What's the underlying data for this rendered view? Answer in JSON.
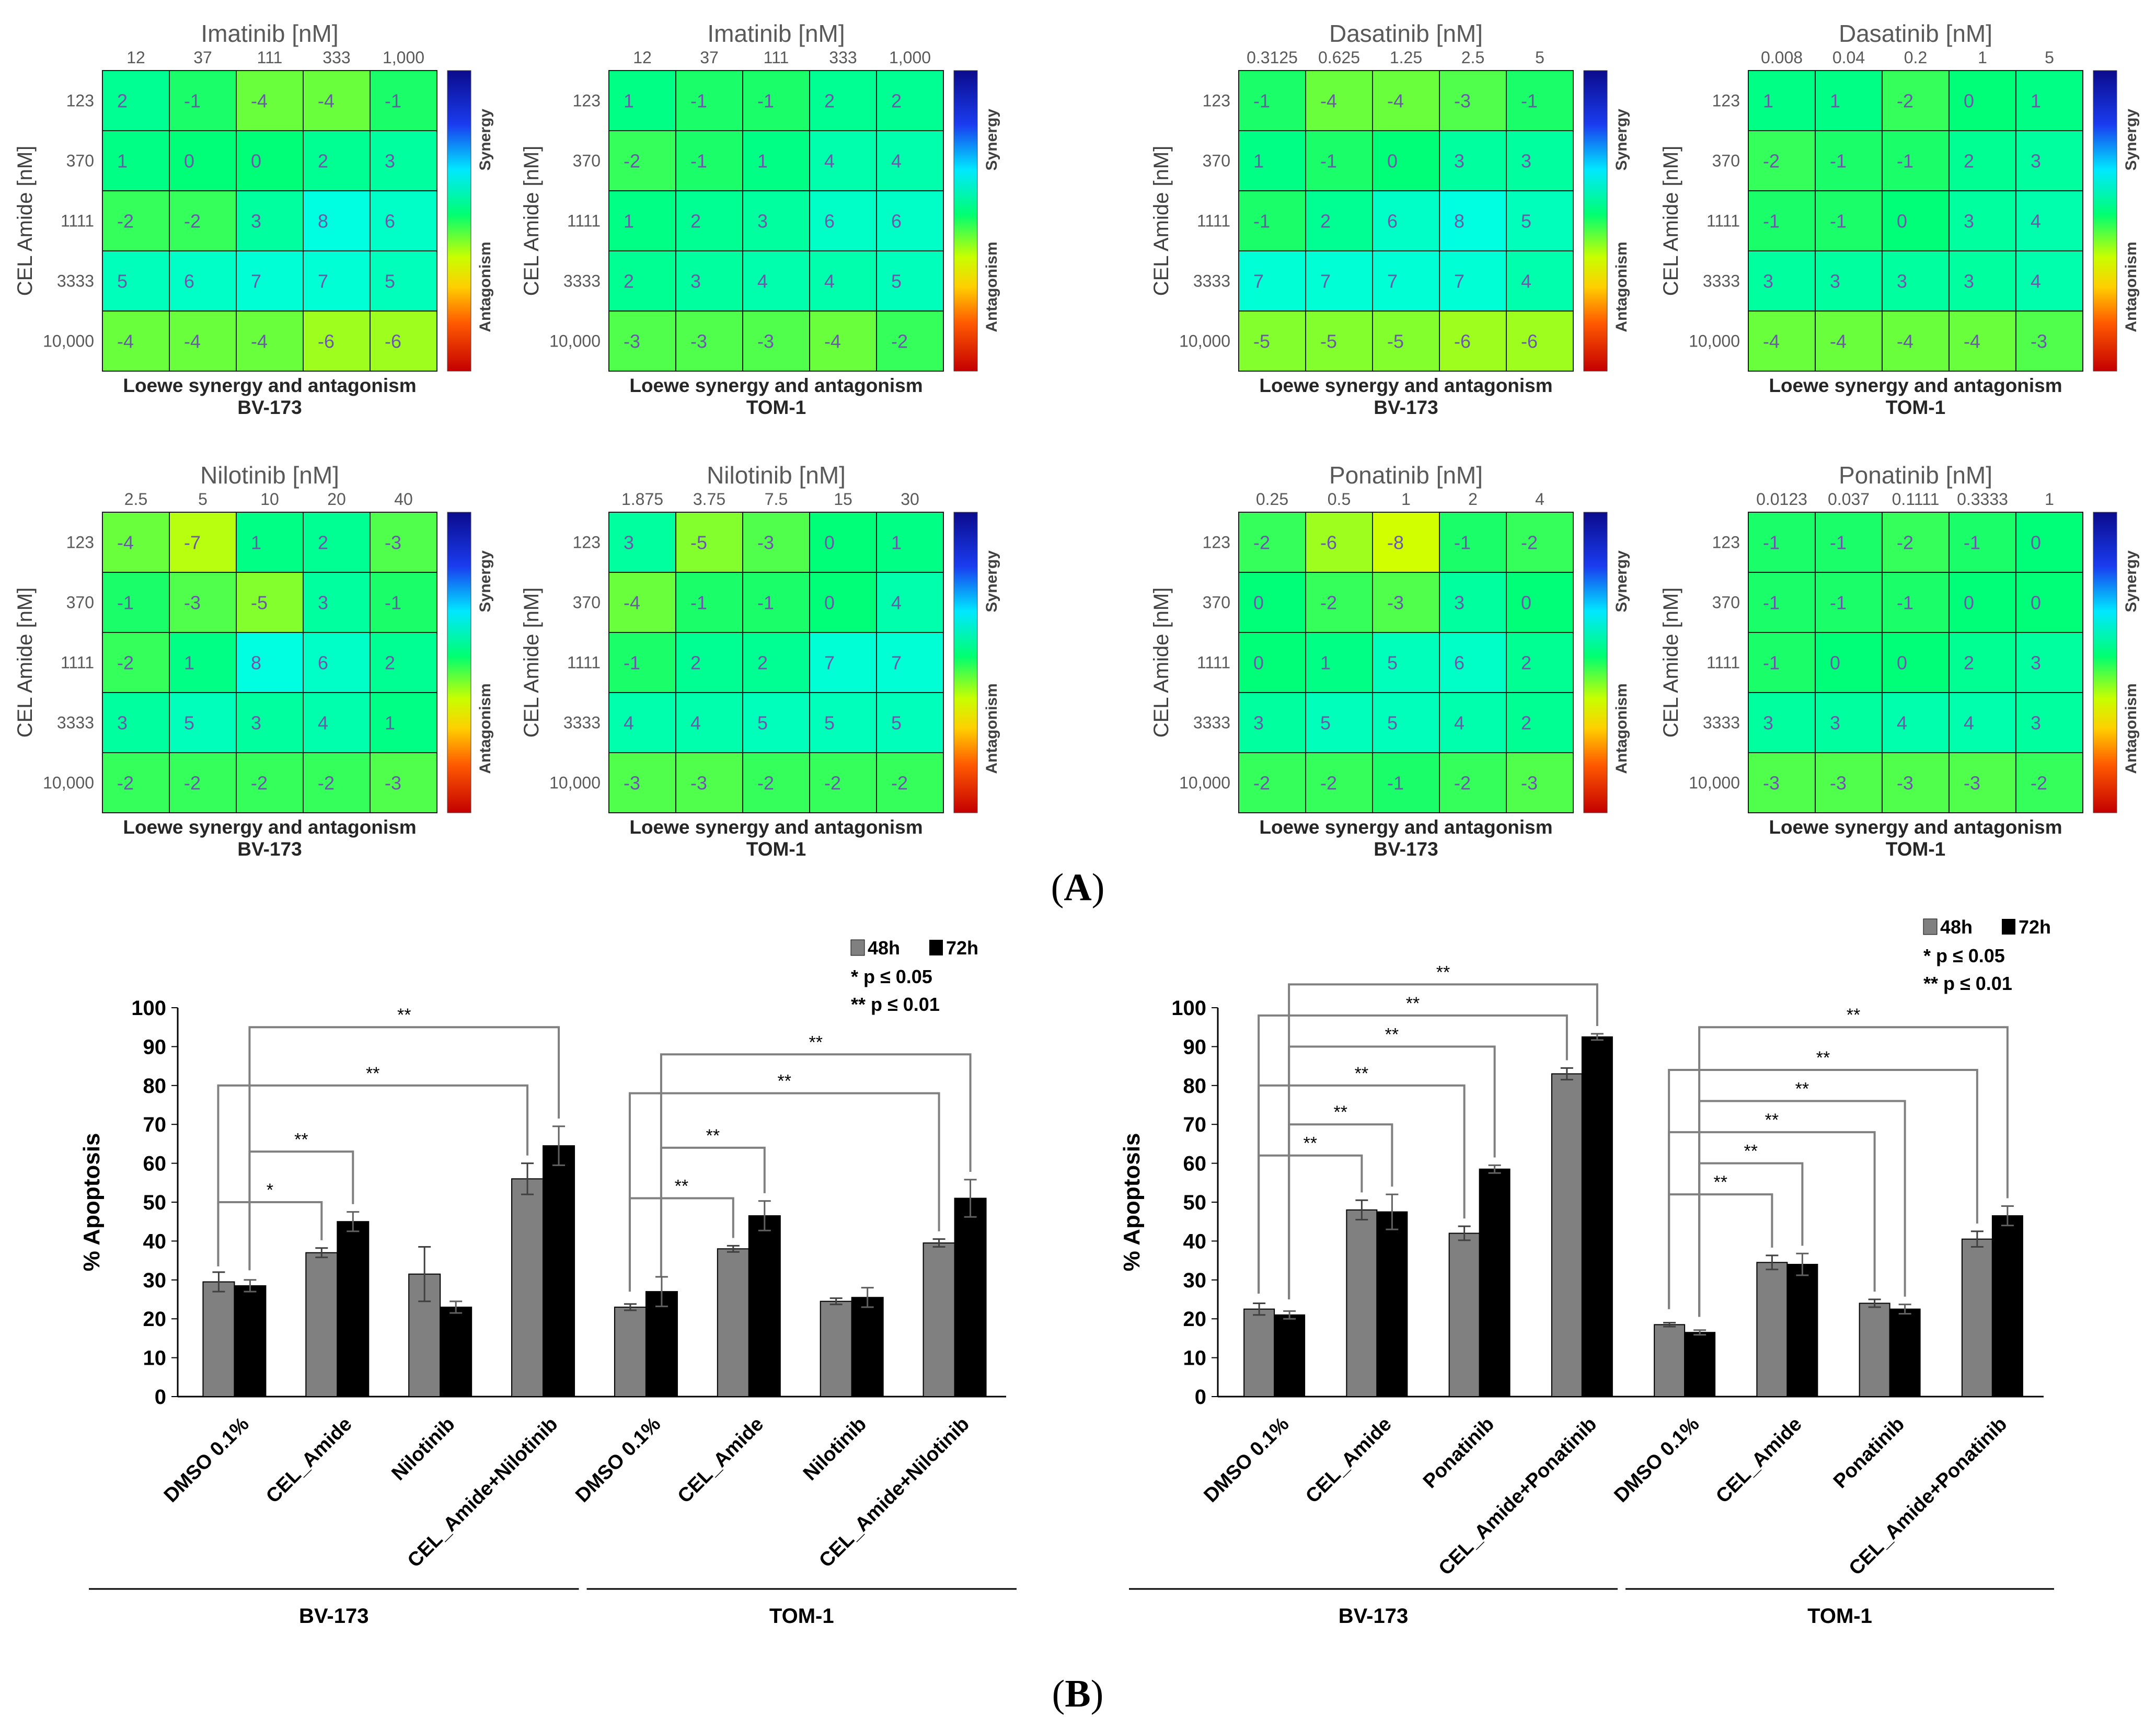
{
  "panel_labels": {
    "A": "A",
    "B": "B"
  },
  "colorbar": {
    "top_label": "Synergy",
    "bottom_label": "Antagonism",
    "range": [
      -30,
      30
    ]
  },
  "chart_data": [
    {
      "type": "heatmap",
      "title": "Imatinib [nM]",
      "x_ticks": [
        "12",
        "37",
        "111",
        "333",
        "1,000"
      ],
      "ylabel": "CEL Amide [nM]",
      "y_ticks": [
        "123",
        "370",
        "1111",
        "3333",
        "10,000"
      ],
      "subtitle": "Loewe synergy and antagonism",
      "cell_line": "BV-173",
      "values": [
        [
          2,
          -1,
          -4,
          -4,
          -1
        ],
        [
          1,
          0,
          0,
          2,
          3
        ],
        [
          -2,
          -2,
          3,
          8,
          6
        ],
        [
          5,
          6,
          7,
          7,
          5
        ],
        [
          -4,
          -4,
          -4,
          -6,
          -6
        ]
      ]
    },
    {
      "type": "heatmap",
      "title": "Imatinib [nM]",
      "x_ticks": [
        "12",
        "37",
        "111",
        "333",
        "1,000"
      ],
      "ylabel": "CEL Amide [nM]",
      "y_ticks": [
        "123",
        "370",
        "1111",
        "3333",
        "10,000"
      ],
      "subtitle": "Loewe synergy and antagonism",
      "cell_line": "TOM-1",
      "values": [
        [
          1,
          -1,
          -1,
          2,
          2
        ],
        [
          -2,
          -1,
          1,
          4,
          4
        ],
        [
          1,
          2,
          3,
          6,
          6
        ],
        [
          2,
          3,
          4,
          4,
          5
        ],
        [
          -3,
          -3,
          -3,
          -4,
          -2
        ]
      ]
    },
    {
      "type": "heatmap",
      "title": "Dasatinib [nM]",
      "x_ticks": [
        "0.3125",
        "0.625",
        "1.25",
        "2.5",
        "5"
      ],
      "ylabel": "CEL Amide [nM]",
      "y_ticks": [
        "123",
        "370",
        "1111",
        "3333",
        "10,000"
      ],
      "subtitle": "Loewe synergy and antagonism",
      "cell_line": "BV-173",
      "values": [
        [
          -1,
          -4,
          -4,
          -3,
          -1
        ],
        [
          1,
          -1,
          0,
          3,
          3
        ],
        [
          -1,
          2,
          6,
          8,
          5
        ],
        [
          7,
          7,
          7,
          7,
          4
        ],
        [
          -5,
          -5,
          -5,
          -6,
          -6
        ]
      ]
    },
    {
      "type": "heatmap",
      "title": "Dasatinib [nM]",
      "x_ticks": [
        "0.008",
        "0.04",
        "0.2",
        "1",
        "5"
      ],
      "ylabel": "CEL Amide [nM]",
      "y_ticks": [
        "123",
        "370",
        "1111",
        "3333",
        "10,000"
      ],
      "subtitle": "Loewe synergy and antagonism",
      "cell_line": "TOM-1",
      "values": [
        [
          1,
          1,
          -2,
          0,
          1
        ],
        [
          -2,
          -1,
          -1,
          2,
          3
        ],
        [
          -1,
          -1,
          0,
          3,
          4
        ],
        [
          3,
          3,
          3,
          3,
          4
        ],
        [
          -4,
          -4,
          -4,
          -4,
          -3
        ]
      ]
    },
    {
      "type": "heatmap",
      "title": "Nilotinib [nM]",
      "x_ticks": [
        "2.5",
        "5",
        "10",
        "20",
        "40"
      ],
      "ylabel": "CEL Amide [nM]",
      "y_ticks": [
        "123",
        "370",
        "1111",
        "3333",
        "10,000"
      ],
      "subtitle": "Loewe synergy and antagonism",
      "cell_line": "BV-173",
      "values": [
        [
          -4,
          -7,
          1,
          2,
          -3
        ],
        [
          -1,
          -3,
          -5,
          3,
          -1
        ],
        [
          -2,
          1,
          8,
          6,
          2
        ],
        [
          3,
          5,
          3,
          4,
          1
        ],
        [
          -2,
          -2,
          -2,
          -2,
          -3
        ]
      ]
    },
    {
      "type": "heatmap",
      "title": "Nilotinib [nM]",
      "x_ticks": [
        "1.875",
        "3.75",
        "7.5",
        "15",
        "30"
      ],
      "ylabel": "CEL Amide [nM]",
      "y_ticks": [
        "123",
        "370",
        "1111",
        "3333",
        "10,000"
      ],
      "subtitle": "Loewe synergy and antagonism",
      "cell_line": "TOM-1",
      "values": [
        [
          3,
          -5,
          -3,
          0,
          1
        ],
        [
          -4,
          -1,
          -1,
          0,
          4
        ],
        [
          -1,
          2,
          2,
          7,
          7
        ],
        [
          4,
          4,
          5,
          5,
          5
        ],
        [
          -3,
          -3,
          -2,
          -2,
          -2
        ]
      ]
    },
    {
      "type": "heatmap",
      "title": "Ponatinib [nM]",
      "x_ticks": [
        "0.25",
        "0.5",
        "1",
        "2",
        "4"
      ],
      "ylabel": "CEL Amide [nM]",
      "y_ticks": [
        "123",
        "370",
        "1111",
        "3333",
        "10,000"
      ],
      "subtitle": "Loewe synergy and antagonism",
      "cell_line": "BV-173",
      "values": [
        [
          -2,
          -6,
          -8,
          -1,
          -2
        ],
        [
          0,
          -2,
          -3,
          3,
          0
        ],
        [
          0,
          1,
          5,
          6,
          2
        ],
        [
          3,
          5,
          5,
          4,
          2
        ],
        [
          -2,
          -2,
          -1,
          -2,
          -3
        ]
      ]
    },
    {
      "type": "heatmap",
      "title": "Ponatinib [nM]",
      "x_ticks": [
        "0.0123",
        "0.037",
        "0.1111",
        "0.3333",
        "1"
      ],
      "ylabel": "CEL Amide [nM]",
      "y_ticks": [
        "123",
        "370",
        "1111",
        "3333",
        "10,000"
      ],
      "subtitle": "Loewe synergy and antagonism",
      "cell_line": "TOM-1",
      "values": [
        [
          -1,
          -1,
          -2,
          -1,
          0
        ],
        [
          -1,
          -1,
          -1,
          0,
          0
        ],
        [
          -1,
          0,
          0,
          2,
          3
        ],
        [
          3,
          3,
          4,
          4,
          3
        ],
        [
          -3,
          -3,
          -3,
          -3,
          -2
        ]
      ]
    },
    {
      "type": "bar",
      "ylabel": "% Apoptosis",
      "ylim": [
        0,
        100
      ],
      "yticks": [
        "0",
        "10",
        "20",
        "30",
        "40",
        "50",
        "60",
        "70",
        "80",
        "90",
        "100"
      ],
      "categories": [
        "DMSO 0.1%",
        "CEL_Amide",
        "Nilotinib",
        "CEL_Amide+Nilotinib",
        "DMSO 0.1%",
        "CEL_Amide",
        "Nilotinib",
        "CEL_Amide+Nilotinib"
      ],
      "groups": [
        "BV-173",
        "TOM-1"
      ],
      "series": [
        {
          "name": "48h",
          "values": [
            29.5,
            37,
            31.5,
            56,
            23,
            38,
            24.5,
            39.5
          ],
          "errors": [
            2.5,
            1.2,
            7,
            4,
            0.8,
            0.8,
            0.8,
            1
          ]
        },
        {
          "name": "72h",
          "values": [
            28.5,
            45,
            23,
            64.5,
            27,
            46.5,
            25.5,
            51
          ],
          "errors": [
            1.5,
            2.5,
            1.5,
            5,
            3.8,
            3.8,
            2.5,
            4.8
          ]
        }
      ],
      "legend": {
        "s48": "48h",
        "s72": "72h",
        "p1": "*  p ≤ 0.05",
        "p2": "** p ≤ 0.01"
      },
      "brackets": [
        {
          "from": 0,
          "to": 1,
          "level": 50,
          "label": "*"
        },
        {
          "from": 0,
          "to": 1,
          "level": 63,
          "label": "**"
        },
        {
          "from": 0,
          "to": 3,
          "level": 80,
          "label": "**"
        },
        {
          "from": 0,
          "to": 3,
          "level": 95,
          "label": "**"
        },
        {
          "from": 4,
          "to": 5,
          "level": 51,
          "label": "**"
        },
        {
          "from": 4,
          "to": 5,
          "level": 64,
          "label": "**"
        },
        {
          "from": 4,
          "to": 7,
          "level": 78,
          "label": "**"
        },
        {
          "from": 4,
          "to": 7,
          "level": 88,
          "label": "**"
        }
      ]
    },
    {
      "type": "bar",
      "ylabel": "% Apoptosis",
      "ylim": [
        0,
        100
      ],
      "yticks": [
        "0",
        "10",
        "20",
        "30",
        "40",
        "50",
        "60",
        "70",
        "80",
        "90",
        "100"
      ],
      "categories": [
        "DMSO 0.1%",
        "CEL_Amide",
        "Ponatinib",
        "CEL_Amide+Ponatinib",
        "DMSO 0.1%",
        "CEL_Amide",
        "Ponatinib",
        "CEL_Amide+Ponatinib"
      ],
      "groups": [
        "BV-173",
        "TOM-1"
      ],
      "series": [
        {
          "name": "48h",
          "values": [
            22.5,
            48,
            42,
            83,
            18.5,
            34.5,
            24,
            40.5
          ],
          "errors": [
            1.5,
            2.5,
            1.8,
            1.5,
            0.5,
            1.8,
            1,
            2
          ]
        },
        {
          "name": "72h",
          "values": [
            21,
            47.5,
            58.5,
            92.5,
            16.5,
            34,
            22.5,
            46.5
          ],
          "errors": [
            1,
            4.5,
            1,
            0.8,
            0.6,
            2.8,
            1.2,
            2.5
          ]
        }
      ],
      "legend": {
        "s48": "48h",
        "s72": "72h",
        "p1": "*  p ≤ 0.05",
        "p2": "** p ≤ 0.01"
      },
      "brackets": [
        {
          "from": 0,
          "to": 1,
          "level": 62,
          "label": "**"
        },
        {
          "from": 0,
          "to": 1,
          "level": 70,
          "label": "**"
        },
        {
          "from": 0,
          "to": 2,
          "level": 80,
          "label": "**"
        },
        {
          "from": 0,
          "to": 2,
          "level": 90,
          "label": "**"
        },
        {
          "from": 0,
          "to": 3,
          "level": 98,
          "label": "**"
        },
        {
          "from": 0,
          "to": 3,
          "level": 106,
          "label": "**"
        },
        {
          "from": 4,
          "to": 5,
          "level": 52,
          "label": "**"
        },
        {
          "from": 4,
          "to": 5,
          "level": 60,
          "label": "**"
        },
        {
          "from": 4,
          "to": 6,
          "level": 68,
          "label": "**"
        },
        {
          "from": 4,
          "to": 6,
          "level": 76,
          "label": "**"
        },
        {
          "from": 4,
          "to": 7,
          "level": 84,
          "label": "**"
        },
        {
          "from": 4,
          "to": 7,
          "level": 95,
          "label": "**"
        }
      ]
    }
  ]
}
